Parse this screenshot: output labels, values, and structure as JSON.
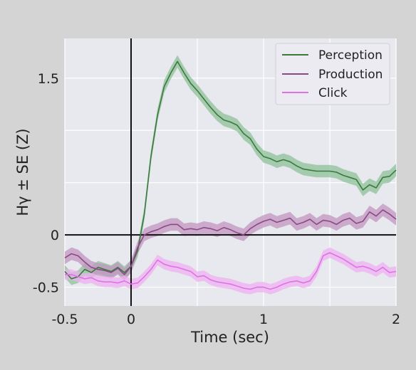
{
  "chart_data": {
    "type": "line",
    "xlabel": "Time (sec)",
    "ylabel": "Hγ ± SE (Z)",
    "xlim": [
      -0.5,
      2.0
    ],
    "ylim": [
      -0.68,
      1.88
    ],
    "x_ticks": [
      -0.5,
      0,
      0.5,
      1,
      1.5,
      2
    ],
    "x_tick_labels": [
      "-0.5",
      "0",
      "",
      "1",
      "",
      "2"
    ],
    "y_ticks": [
      -0.5,
      0,
      0.5,
      1.0,
      1.5
    ],
    "y_tick_labels": [
      "-0.5",
      "0",
      "",
      "",
      "1.5"
    ],
    "grid": true,
    "reference_lines": {
      "x": 0,
      "y": 0
    },
    "legend_position": "top-right",
    "series": [
      {
        "name": "Perception",
        "color": "#3a7a3a",
        "band_color": "#8fc29a",
        "se": 0.06,
        "x": [
          -0.5,
          -0.45,
          -0.4,
          -0.35,
          -0.3,
          -0.25,
          -0.2,
          -0.15,
          -0.1,
          -0.05,
          0.0,
          0.05,
          0.1,
          0.15,
          0.2,
          0.25,
          0.3,
          0.35,
          0.4,
          0.45,
          0.5,
          0.55,
          0.6,
          0.65,
          0.7,
          0.75,
          0.8,
          0.85,
          0.9,
          0.95,
          1.0,
          1.05,
          1.1,
          1.15,
          1.2,
          1.25,
          1.3,
          1.35,
          1.4,
          1.45,
          1.5,
          1.55,
          1.6,
          1.65,
          1.7,
          1.75,
          1.8,
          1.85,
          1.9,
          1.95,
          2.0
        ],
        "values": [
          -0.35,
          -0.42,
          -0.4,
          -0.33,
          -0.36,
          -0.31,
          -0.33,
          -0.35,
          -0.31,
          -0.36,
          -0.3,
          -0.15,
          0.2,
          0.75,
          1.15,
          1.42,
          1.55,
          1.66,
          1.55,
          1.45,
          1.38,
          1.3,
          1.22,
          1.15,
          1.1,
          1.08,
          1.05,
          0.97,
          0.92,
          0.82,
          0.75,
          0.73,
          0.7,
          0.72,
          0.7,
          0.66,
          0.63,
          0.62,
          0.61,
          0.61,
          0.61,
          0.6,
          0.57,
          0.55,
          0.53,
          0.43,
          0.48,
          0.45,
          0.55,
          0.56,
          0.62
        ]
      },
      {
        "name": "Production",
        "color": "#8a4a86",
        "band_color": "#c295c0",
        "se": 0.06,
        "x": [
          -0.5,
          -0.45,
          -0.4,
          -0.35,
          -0.3,
          -0.25,
          -0.2,
          -0.15,
          -0.1,
          -0.05,
          0.0,
          0.05,
          0.1,
          0.15,
          0.2,
          0.25,
          0.3,
          0.35,
          0.4,
          0.45,
          0.5,
          0.55,
          0.6,
          0.65,
          0.7,
          0.75,
          0.8,
          0.85,
          0.9,
          0.95,
          1.0,
          1.05,
          1.1,
          1.15,
          1.2,
          1.25,
          1.3,
          1.35,
          1.4,
          1.45,
          1.5,
          1.55,
          1.6,
          1.65,
          1.7,
          1.75,
          1.8,
          1.85,
          1.9,
          1.95,
          2.0
        ],
        "values": [
          -0.22,
          -0.18,
          -0.2,
          -0.26,
          -0.31,
          -0.33,
          -0.34,
          -0.36,
          -0.32,
          -0.38,
          -0.3,
          -0.12,
          0.0,
          0.03,
          0.05,
          0.08,
          0.1,
          0.1,
          0.05,
          0.06,
          0.05,
          0.07,
          0.06,
          0.04,
          0.07,
          0.05,
          0.02,
          0.0,
          0.06,
          0.1,
          0.13,
          0.15,
          0.12,
          0.14,
          0.16,
          0.1,
          0.12,
          0.15,
          0.1,
          0.14,
          0.13,
          0.1,
          0.14,
          0.16,
          0.11,
          0.13,
          0.22,
          0.18,
          0.24,
          0.2,
          0.15
        ]
      },
      {
        "name": "Click",
        "color": "#e070e6",
        "band_color": "#efb2f2",
        "se": 0.05,
        "x": [
          -0.5,
          -0.45,
          -0.4,
          -0.35,
          -0.3,
          -0.25,
          -0.2,
          -0.15,
          -0.1,
          -0.05,
          0.0,
          0.05,
          0.1,
          0.15,
          0.2,
          0.25,
          0.3,
          0.35,
          0.4,
          0.45,
          0.5,
          0.55,
          0.6,
          0.65,
          0.7,
          0.75,
          0.8,
          0.85,
          0.9,
          0.95,
          1.0,
          1.05,
          1.1,
          1.15,
          1.2,
          1.25,
          1.3,
          1.35,
          1.4,
          1.45,
          1.5,
          1.55,
          1.6,
          1.65,
          1.7,
          1.75,
          1.8,
          1.85,
          1.9,
          1.95,
          2.0
        ],
        "values": [
          -0.38,
          -0.38,
          -0.4,
          -0.42,
          -0.41,
          -0.44,
          -0.45,
          -0.45,
          -0.46,
          -0.44,
          -0.47,
          -0.46,
          -0.4,
          -0.33,
          -0.24,
          -0.28,
          -0.3,
          -0.31,
          -0.33,
          -0.35,
          -0.4,
          -0.39,
          -0.43,
          -0.45,
          -0.46,
          -0.47,
          -0.49,
          -0.51,
          -0.52,
          -0.5,
          -0.5,
          -0.52,
          -0.5,
          -0.47,
          -0.45,
          -0.44,
          -0.46,
          -0.44,
          -0.35,
          -0.2,
          -0.17,
          -0.2,
          -0.23,
          -0.27,
          -0.31,
          -0.3,
          -0.32,
          -0.35,
          -0.31,
          -0.36,
          -0.35
        ]
      }
    ]
  }
}
